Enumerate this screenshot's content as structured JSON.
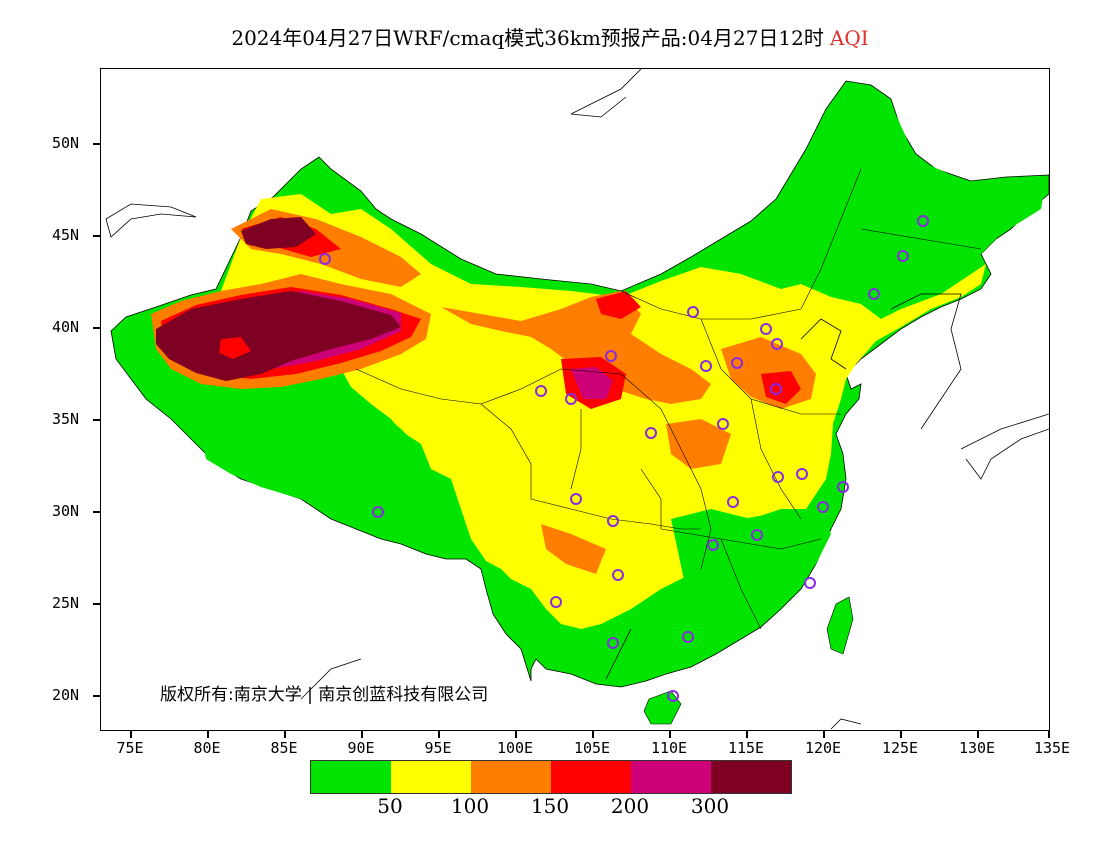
{
  "title": {
    "main": "2024年04月27日WRF/cmaq模式36km预报产品:04月27日12时",
    "var": "AQI"
  },
  "lat_labels": [
    "50N",
    "45N",
    "40N",
    "35N",
    "30N",
    "25N",
    "20N"
  ],
  "lon_labels": [
    "75E",
    "80E",
    "85E",
    "90E",
    "95E",
    "100E",
    "105E",
    "110E",
    "115E",
    "120E",
    "125E",
    "130E",
    "135E"
  ],
  "copyright": "版权所有:南京大学 | 南京创蓝科技有限公司",
  "legend": {
    "colors": [
      "#00e400",
      "#ffff00",
      "#ff7e00",
      "#ff0000",
      "#cc0077",
      "#7e0023"
    ],
    "labels": [
      "50",
      "100",
      "150",
      "200",
      "300"
    ]
  },
  "colors": {
    "good": "#00e400",
    "moderate": "#ffff00",
    "usg": "#ff7e00",
    "unhealthy": "#ff0000",
    "very_unhealthy": "#cc0077",
    "hazardous": "#7e0023",
    "station_marker": "#8a2be2",
    "title_var": "#e0302e"
  }
}
